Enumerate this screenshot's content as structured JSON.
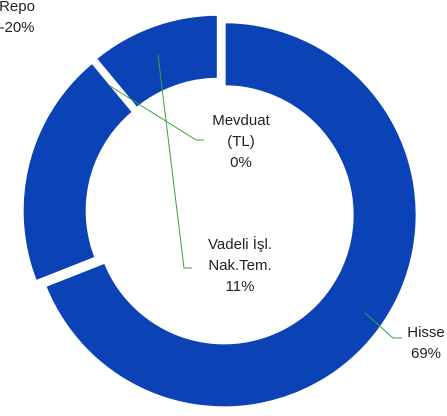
{
  "chart_data": {
    "type": "donut",
    "categories": [
      "Hisse",
      "Repo",
      "Mevduat (TL)",
      "Vadeli İşl. Nak.Tem."
    ],
    "values": [
      69,
      -20,
      0,
      11
    ],
    "value_labels": [
      "69%",
      "-20%",
      "0%",
      "11%"
    ],
    "color": "#0b42b6"
  }
}
